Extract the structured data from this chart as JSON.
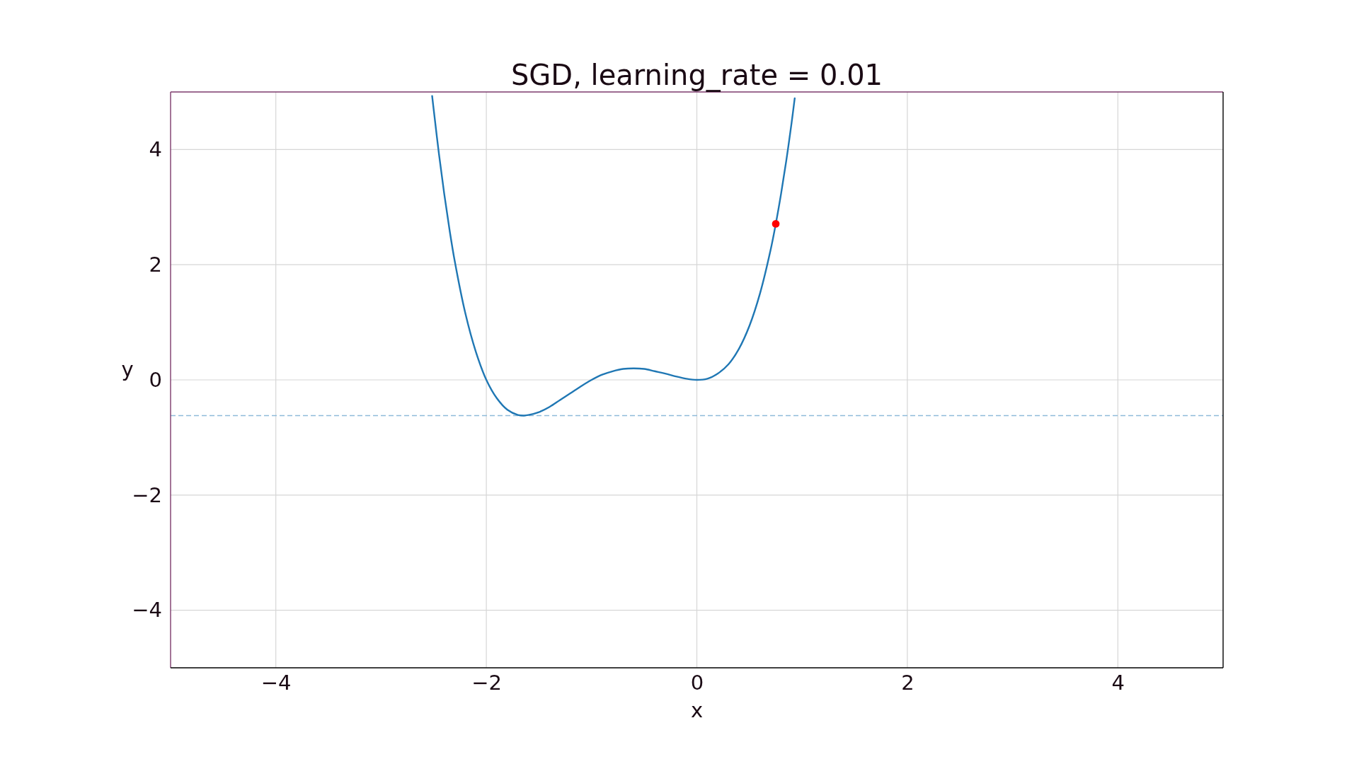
{
  "chart_data": {
    "type": "line",
    "title": "SGD, learning_rate = 0.01",
    "xlabel": "x",
    "ylabel": "y",
    "xlim": [
      -5,
      5
    ],
    "ylim": [
      -5,
      5
    ],
    "xticks": [
      -4,
      -2,
      0,
      2,
      4
    ],
    "yticks": [
      -4,
      -2,
      0,
      2,
      4
    ],
    "grid": true,
    "series": [
      {
        "color": "#1f77b4",
        "x": [
          -2.515,
          -2.5,
          -2.45,
          -2.4,
          -2.35,
          -2.3,
          -2.2,
          -2.1,
          -2.0,
          -1.9,
          -1.8,
          -1.7,
          -1.64,
          -1.6,
          -1.5,
          -1.4,
          -1.3,
          -1.2,
          -1.1,
          -1.0,
          -0.9,
          -0.8,
          -0.7,
          -0.6,
          -0.5,
          -0.4,
          -0.3,
          -0.2,
          -0.1,
          0,
          0.1,
          0.2,
          0.3,
          0.4,
          0.5,
          0.6,
          0.7,
          0.75,
          0.8,
          0.85,
          0.9,
          0.93
        ],
        "values": [
          4.93,
          4.69,
          3.92,
          3.23,
          2.61,
          2.06,
          1.16,
          0.49,
          0,
          -0.32,
          -0.52,
          -0.61,
          -0.62,
          -0.61,
          -0.56,
          -0.47,
          -0.35,
          -0.23,
          -0.11,
          0,
          0.09,
          0.15,
          0.19,
          0.2,
          0.19,
          0.15,
          0.11,
          0.06,
          0.02,
          0,
          0.02,
          0.11,
          0.27,
          0.54,
          0.94,
          1.5,
          2.25,
          2.71,
          3.23,
          3.81,
          4.46,
          4.89
        ]
      },
      {
        "type": "scatter",
        "color": "#ff0000",
        "marker": "circle",
        "x": [
          0.75
        ],
        "values": [
          2.71
        ]
      }
    ],
    "ref_lines": [
      {
        "axis": "y",
        "value": -0.62,
        "color": "#8fbbd9",
        "line_style": "dashed"
      }
    ]
  }
}
